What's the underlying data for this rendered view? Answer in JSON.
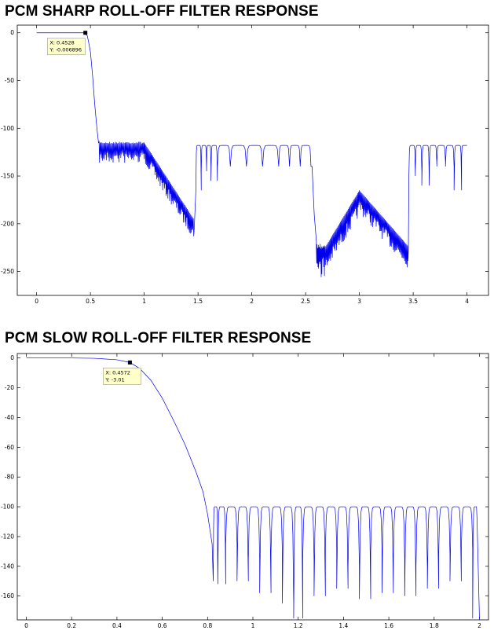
{
  "chart_data": [
    {
      "type": "line",
      "title": "PCM SHARP ROLL-OFF FILTER RESPONSE",
      "xlabel": "",
      "ylabel": "",
      "xlim": [
        -0.18,
        4.2
      ],
      "ylim": [
        -275,
        8
      ],
      "x_ticks": [
        0,
        0.5,
        1,
        1.5,
        2,
        2.5,
        3,
        3.5,
        4
      ],
      "x_tick_labels": [
        "0",
        "0.5",
        "1",
        "1.5",
        "2",
        "2.5",
        "3",
        "3.5",
        "4"
      ],
      "y_ticks": [
        0,
        -50,
        -100,
        -150,
        -200,
        -250
      ],
      "y_tick_labels": [
        "0",
        "-50",
        "-100",
        "-150",
        "-200",
        "-250"
      ],
      "grid": false,
      "line_color": "#0000ee",
      "series": [
        {
          "x": [
            0,
            0.45,
            0.47,
            0.5,
            0.53,
            0.56,
            0.58,
            0.6,
            0.7,
            0.8,
            0.9,
            1.0,
            1.05,
            1.1,
            1.2,
            1.3,
            1.4,
            1.45,
            1.48,
            1.55,
            1.6,
            1.7,
            1.8,
            1.9,
            2.0,
            2.1,
            2.2,
            2.3,
            2.4,
            2.5,
            2.55,
            2.6,
            2.65,
            2.7,
            2.8,
            2.9,
            3.0,
            3.1,
            3.2,
            3.3,
            3.4,
            3.45,
            3.5,
            3.55,
            3.6,
            3.7,
            3.8,
            3.9,
            4.0
          ],
          "y": [
            0,
            0,
            -3,
            -20,
            -60,
            -100,
            -118,
            -115,
            -115,
            -115,
            -115,
            -115,
            -120,
            -130,
            -150,
            -170,
            -190,
            -200,
            -120,
            -118,
            -118,
            -118,
            -118,
            -118,
            -118,
            -118,
            -118,
            -118,
            -118,
            -118,
            -120,
            -220,
            -225,
            -230,
            -210,
            -190,
            -170,
            -175,
            -185,
            -200,
            -215,
            -220,
            -120,
            -118,
            -118,
            -118,
            -118,
            -118,
            -118
          ]
        }
      ],
      "datatip": {
        "x_text": "X: 0.4528",
        "y_text": "Y: -0.006896",
        "x": 0.4528,
        "y": -0.006896
      }
    },
    {
      "type": "line",
      "title": "PCM SLOW ROLL-OFF FILTER RESPONSE",
      "xlabel": "",
      "ylabel": "",
      "xlim": [
        -0.04,
        2.04
      ],
      "ylim": [
        -176,
        3
      ],
      "x_ticks": [
        0,
        0.2,
        0.4,
        0.6,
        0.8,
        1,
        1.2,
        1.4,
        1.6,
        1.8,
        2
      ],
      "x_tick_labels": [
        "0",
        "0.2",
        "0.4",
        "0.6",
        "0.8",
        "1",
        "1.2",
        "1.4",
        "1.6",
        "1.8",
        "2"
      ],
      "y_ticks": [
        0,
        -20,
        -40,
        -60,
        -80,
        -100,
        -120,
        -140,
        -160
      ],
      "y_tick_labels": [
        "0",
        "-20",
        "-40",
        "-60",
        "-80",
        "-100",
        "-120",
        "-140",
        "-160"
      ],
      "grid": false,
      "line_color": "#0000ee",
      "series": [
        {
          "x": [
            0,
            0.1,
            0.2,
            0.3,
            0.4,
            0.4572,
            0.5,
            0.55,
            0.6,
            0.65,
            0.7,
            0.75,
            0.78,
            0.8,
            0.82
          ],
          "y": [
            0,
            0,
            0,
            -0.2,
            -1.2,
            -3.01,
            -7,
            -15,
            -27,
            -42,
            -58,
            -77,
            -90,
            -105,
            -125
          ]
        }
      ],
      "datatip": {
        "x_text": "X: 0.4572",
        "y_text": "Y: -3.01",
        "x": 0.4572,
        "y": -3.01
      }
    }
  ]
}
